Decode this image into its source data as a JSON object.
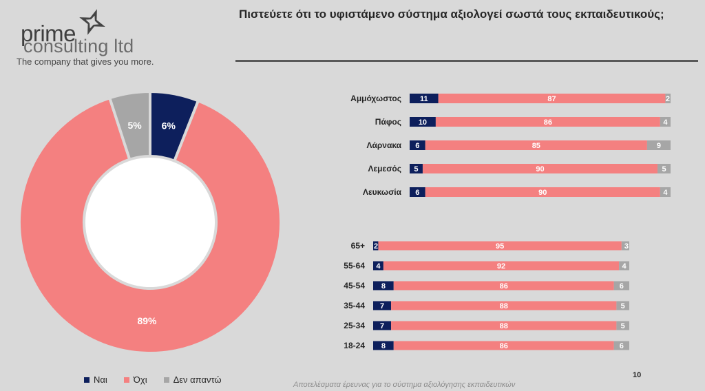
{
  "logo": {
    "word1": "prime",
    "word2": "consulting ltd",
    "tagline": "The company that gives you more."
  },
  "title": "Πιστεύετε ότι το υφιστάμενο σύστημα αξιολογεί σωστά τους εκπαιδευτικούς;",
  "colors": {
    "yes": "#0d1f5c",
    "no": "#f48080",
    "na": "#a6a6a6",
    "bg": "#d9d9d9"
  },
  "legend": [
    {
      "label": "Ναι",
      "key": "yes"
    },
    {
      "label": "Όχι",
      "key": "no"
    },
    {
      "label": "Δεν απαντώ",
      "key": "na"
    }
  ],
  "footer": "Αποτελέσματα έρευνας για το σύστημα αξιολόγησης εκπαιδευτικών",
  "page_number": "10",
  "chart_data": [
    {
      "type": "pie",
      "subtype": "donut",
      "labels": [
        "Ναι",
        "Όχι",
        "Δεν απαντώ"
      ],
      "values": [
        6,
        89,
        5
      ],
      "data_labels": [
        "6%",
        "89%",
        "5%"
      ]
    },
    {
      "type": "bar",
      "orientation": "horizontal",
      "stacked": true,
      "categories": [
        "Αμμόχωστος",
        "Πάφος",
        "Λάρνακα",
        "Λεμεσός",
        "Λευκωσία"
      ],
      "series": [
        {
          "name": "Ναι",
          "values": [
            11,
            10,
            6,
            5,
            6
          ]
        },
        {
          "name": "Όχι",
          "values": [
            87,
            86,
            85,
            90,
            90
          ]
        },
        {
          "name": "Δεν απαντώ",
          "values": [
            2,
            4,
            9,
            5,
            4
          ]
        }
      ]
    },
    {
      "type": "bar",
      "orientation": "horizontal",
      "stacked": true,
      "categories": [
        "65+",
        "55-64",
        "45-54",
        "35-44",
        "25-34",
        "18-24"
      ],
      "series": [
        {
          "name": "Ναι",
          "values": [
            2,
            4,
            8,
            7,
            7,
            8
          ]
        },
        {
          "name": "Όχι",
          "values": [
            95,
            92,
            86,
            88,
            88,
            86
          ]
        },
        {
          "name": "Δεν απαντώ",
          "values": [
            3,
            4,
            6,
            5,
            5,
            6
          ]
        }
      ]
    }
  ]
}
